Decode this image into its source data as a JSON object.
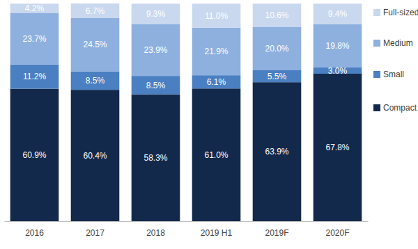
{
  "chart_data": {
    "type": "bar",
    "stacked": true,
    "data_labels": true,
    "tick_labels": "x",
    "legend": "right",
    "categories": [
      "2016",
      "2017",
      "2018",
      "2019 H1",
      "2019F",
      "2020F"
    ],
    "ylim": [
      0,
      100.1
    ],
    "series": [
      {
        "name": "Compact",
        "color": "#13294b",
        "values": [
          60.9,
          60.4,
          58.3,
          61.0,
          63.9,
          67.8
        ],
        "value_labels": [
          "60.9%",
          "60.4%",
          "58.3%",
          "61.0%",
          "63.9%",
          "67.8%"
        ]
      },
      {
        "name": "Small",
        "color": "#4a7fc1",
        "values": [
          11.2,
          8.5,
          8.5,
          6.1,
          5.5,
          3.0
        ],
        "value_labels": [
          "11.2%",
          "8.5%",
          "8.5%",
          "6.1%",
          "5.5%",
          "3.0%"
        ]
      },
      {
        "name": "Medium",
        "color": "#8eb0df",
        "values": [
          23.7,
          24.5,
          23.9,
          21.9,
          20.0,
          19.8
        ],
        "value_labels": [
          "23.7%",
          "24.5%",
          "23.9%",
          "21.9%",
          "20.0%",
          "19.8%"
        ]
      },
      {
        "name": "Full-sized",
        "color": "#c9d8ee",
        "values": [
          4.2,
          6.7,
          9.3,
          11.0,
          10.6,
          9.4
        ],
        "value_labels": [
          "4.2%",
          "6.7%",
          "9.3%",
          "11.0%",
          "10.6%",
          "9.4%"
        ]
      }
    ]
  }
}
